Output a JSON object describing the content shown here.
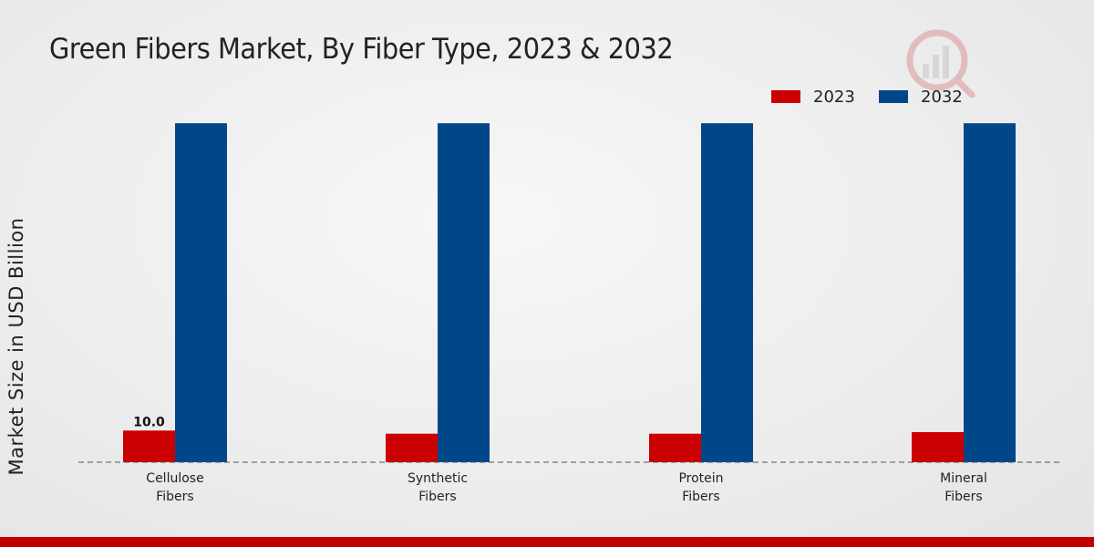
{
  "chart_data": {
    "type": "bar",
    "title": "Green Fibers Market, By Fiber Type, 2023 & 2032",
    "ylabel": "Market Size in USD Billion",
    "xlabel": "",
    "categories": [
      "Cellulose\nFibers",
      "Synthetic\nFibers",
      "Protein\nFibers",
      "Mineral\nFibers"
    ],
    "series": [
      {
        "name": "2023",
        "values": [
          10.0,
          9.0,
          9.0,
          9.5
        ],
        "color": "#cc0000"
      },
      {
        "name": "2032",
        "values": [
          107,
          107,
          107,
          107
        ],
        "color": "#00478a"
      }
    ],
    "data_labels": [
      {
        "series": 0,
        "index": 0,
        "text": "10.0"
      }
    ],
    "ylim": [
      0,
      120
    ],
    "grid": false,
    "legend_position": "top-right"
  }
}
